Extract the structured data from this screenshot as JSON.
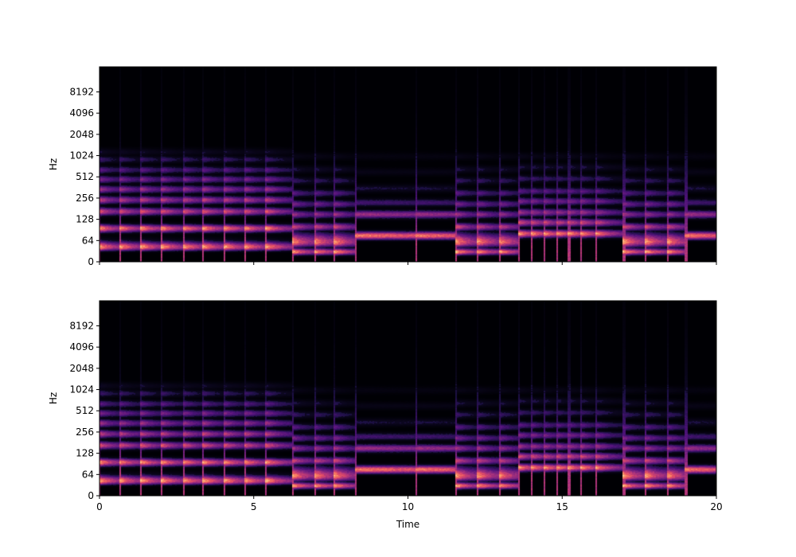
{
  "chart_data": [
    {
      "type": "heatmap",
      "title": "",
      "xlabel": "",
      "ylabel": "Hz",
      "y_scale": "log2",
      "xlim": [
        0,
        20
      ],
      "x_ticks": [],
      "y_ticks": [
        "0",
        "64",
        "128",
        "256",
        "512",
        "1024",
        "2048",
        "4096",
        "8192"
      ],
      "y_tick_values": [
        0,
        64,
        128,
        256,
        512,
        1024,
        2048,
        4096,
        8192
      ],
      "colormap": "magma",
      "grid": false,
      "legend": "none",
      "events": [
        {
          "t": 0.0,
          "type": "chord"
        },
        {
          "t": 0.65,
          "type": "chord"
        },
        {
          "t": 1.35,
          "type": "chord"
        },
        {
          "t": 2.0,
          "type": "chord"
        },
        {
          "t": 2.7,
          "type": "chord"
        },
        {
          "t": 3.35,
          "type": "chord"
        },
        {
          "t": 4.05,
          "type": "chord"
        },
        {
          "t": 4.7,
          "type": "chord"
        },
        {
          "t": 5.4,
          "type": "chord"
        },
        {
          "t": 6.25,
          "type": "bass"
        },
        {
          "t": 6.95,
          "type": "bass"
        },
        {
          "t": 7.6,
          "type": "bass"
        },
        {
          "t": 8.3,
          "type": "sustain"
        },
        {
          "t": 10.25,
          "type": "sustain"
        },
        {
          "t": 11.55,
          "type": "bass"
        },
        {
          "t": 12.25,
          "type": "bass"
        },
        {
          "t": 12.95,
          "type": "bass"
        },
        {
          "t": 13.6,
          "type": "short"
        },
        {
          "t": 14.0,
          "type": "short"
        },
        {
          "t": 14.4,
          "type": "short"
        },
        {
          "t": 14.8,
          "type": "short"
        },
        {
          "t": 15.2,
          "type": "short"
        },
        {
          "t": 15.6,
          "type": "short"
        },
        {
          "t": 16.1,
          "type": "short"
        },
        {
          "t": 17.0,
          "type": "bass"
        },
        {
          "t": 17.7,
          "type": "bass"
        },
        {
          "t": 18.4,
          "type": "bass"
        },
        {
          "t": 19.0,
          "type": "sustain"
        }
      ]
    },
    {
      "type": "heatmap",
      "title": "",
      "xlabel": "Time",
      "ylabel": "Hz",
      "y_scale": "log2",
      "xlim": [
        0,
        20
      ],
      "x_ticks": [
        "0",
        "5",
        "10",
        "15",
        "20"
      ],
      "x_tick_values": [
        0,
        5,
        10,
        15,
        20
      ],
      "y_ticks": [
        "0",
        "64",
        "128",
        "256",
        "512",
        "1024",
        "2048",
        "4096",
        "8192"
      ],
      "y_tick_values": [
        0,
        64,
        128,
        256,
        512,
        1024,
        2048,
        4096,
        8192
      ],
      "colormap": "magma",
      "grid": false,
      "legend": "none",
      "events": [
        {
          "t": 0.0,
          "type": "chord"
        },
        {
          "t": 0.65,
          "type": "chord"
        },
        {
          "t": 1.35,
          "type": "chord"
        },
        {
          "t": 2.0,
          "type": "chord"
        },
        {
          "t": 2.7,
          "type": "chord"
        },
        {
          "t": 3.35,
          "type": "chord"
        },
        {
          "t": 4.05,
          "type": "chord"
        },
        {
          "t": 4.7,
          "type": "chord"
        },
        {
          "t": 5.4,
          "type": "chord"
        },
        {
          "t": 6.25,
          "type": "bass"
        },
        {
          "t": 6.95,
          "type": "bass"
        },
        {
          "t": 7.6,
          "type": "bass"
        },
        {
          "t": 8.3,
          "type": "sustain"
        },
        {
          "t": 10.25,
          "type": "sustain"
        },
        {
          "t": 11.55,
          "type": "bass"
        },
        {
          "t": 12.25,
          "type": "bass"
        },
        {
          "t": 12.95,
          "type": "bass"
        },
        {
          "t": 13.6,
          "type": "short"
        },
        {
          "t": 14.0,
          "type": "short"
        },
        {
          "t": 14.4,
          "type": "short"
        },
        {
          "t": 14.8,
          "type": "short"
        },
        {
          "t": 15.2,
          "type": "short"
        },
        {
          "t": 15.6,
          "type": "short"
        },
        {
          "t": 16.1,
          "type": "short"
        },
        {
          "t": 17.0,
          "type": "bass"
        },
        {
          "t": 17.7,
          "type": "bass"
        },
        {
          "t": 18.4,
          "type": "bass"
        },
        {
          "t": 19.0,
          "type": "sustain"
        }
      ]
    }
  ]
}
